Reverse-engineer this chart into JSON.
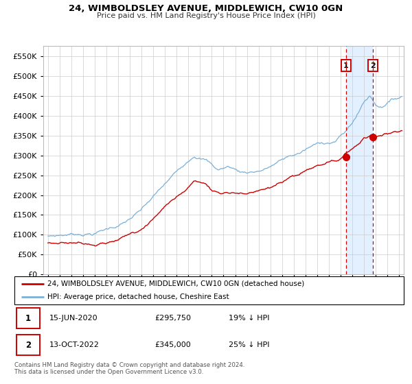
{
  "title": "24, WIMBOLDSLEY AVENUE, MIDDLEWICH, CW10 0GN",
  "subtitle": "Price paid vs. HM Land Registry's House Price Index (HPI)",
  "legend_line1": "24, WIMBOLDSLEY AVENUE, MIDDLEWICH, CW10 0GN (detached house)",
  "legend_line2": "HPI: Average price, detached house, Cheshire East",
  "footnote": "Contains HM Land Registry data © Crown copyright and database right 2024.\nThis data is licensed under the Open Government Licence v3.0.",
  "transaction1_label": "1",
  "transaction1_date": "15-JUN-2020",
  "transaction1_price": "£295,750",
  "transaction1_hpi": "19% ↓ HPI",
  "transaction2_label": "2",
  "transaction2_date": "13-OCT-2022",
  "transaction2_price": "£345,000",
  "transaction2_hpi": "25% ↓ HPI",
  "hpi_color": "#7ab0d8",
  "price_color": "#cc0000",
  "dashed_line_color": "#cc0000",
  "shade_color": "#ddeeff",
  "ylim": [
    0,
    575000
  ],
  "yticks": [
    0,
    50000,
    100000,
    150000,
    200000,
    250000,
    300000,
    350000,
    400000,
    450000,
    500000,
    550000
  ],
  "transaction1_x": 2020.45,
  "transaction1_y": 295750,
  "transaction2_x": 2022.78,
  "transaction2_y": 345000,
  "x_start": 1995,
  "x_end": 2025,
  "shade_start": 2020.45,
  "shade_end": 2022.78,
  "xlim_left": 1994.6,
  "xlim_right": 2025.4
}
